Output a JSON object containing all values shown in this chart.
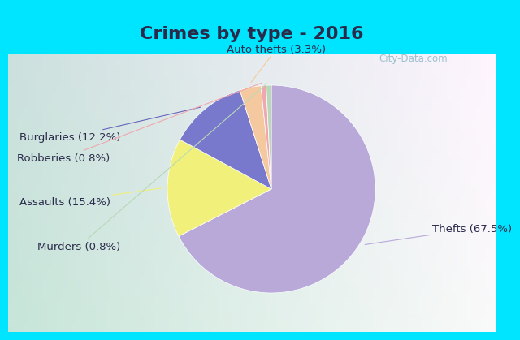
{
  "title": "Crimes by type - 2016",
  "labels": [
    "Thefts",
    "Assaults",
    "Burglaries",
    "Auto thefts",
    "Robberies",
    "Murders"
  ],
  "values": [
    67.5,
    15.4,
    12.2,
    3.3,
    0.8,
    0.8
  ],
  "colors": [
    "#b8a9d9",
    "#f0f07a",
    "#7878cc",
    "#f5c9a0",
    "#f0a8b0",
    "#b8d8b8"
  ],
  "label_texts": [
    "Thefts (67.5%)",
    "Assaults (15.4%)",
    "Burglaries (12.2%)",
    "Auto thefts (3.3%)",
    "Robberies (0.8%)",
    "Murders (0.8%)"
  ],
  "line_colors": [
    "#b8a9d9",
    "#f0f07a",
    "#6666bb",
    "#f5c9a0",
    "#f0a8b0",
    "#b8d8b8"
  ],
  "cyan_bar_color": "#00e5ff",
  "chart_bg_color": "#e8f5e9",
  "title_color": "#2a2a4a",
  "title_fontsize": 16,
  "label_fontsize": 9.5,
  "watermark": "City-Data.com"
}
